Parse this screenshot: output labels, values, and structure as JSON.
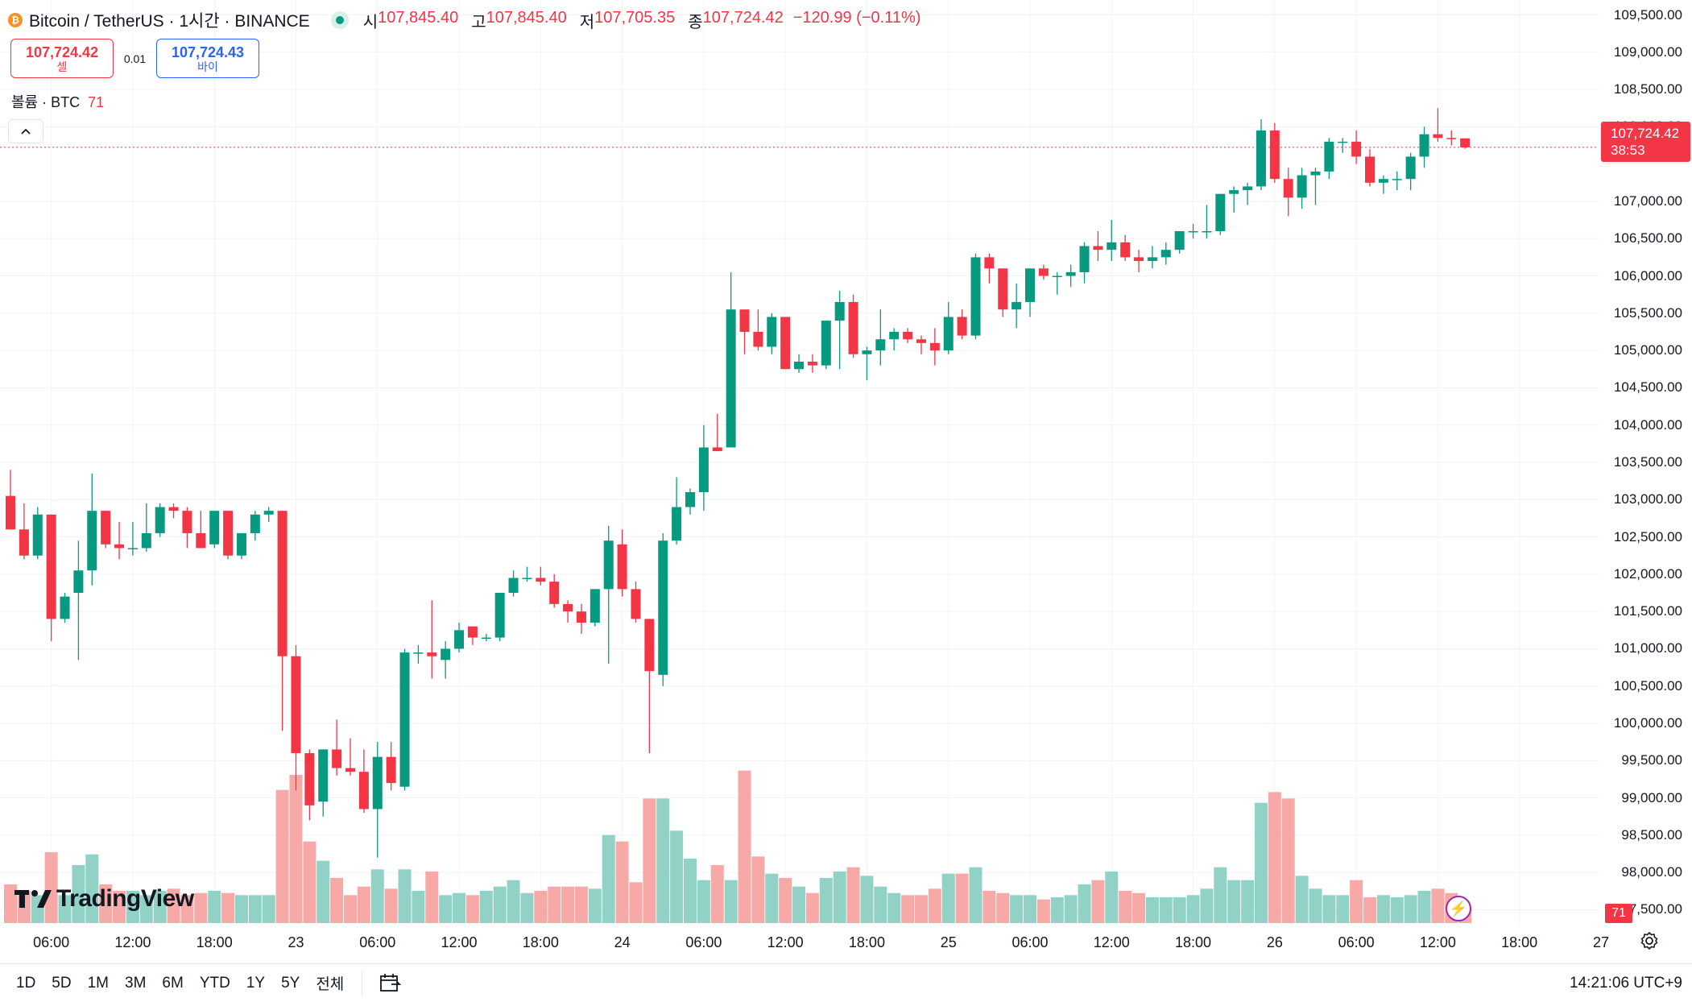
{
  "header": {
    "symbol": "Bitcoin / TetherUS · 1시간 · BINANCE",
    "ohlc": {
      "open_label": "시",
      "open": "107,845.40",
      "high_label": "고",
      "high": "107,845.40",
      "low_label": "저",
      "low": "107,705.35",
      "close_label": "종",
      "close": "107,724.42",
      "change": "−120.99 (−0.11%)"
    }
  },
  "trade": {
    "sell_price": "107,724.42",
    "sell_label": "셀",
    "spread": "0.01",
    "buy_price": "107,724.43",
    "buy_label": "바이"
  },
  "volume_legend": {
    "label": "볼륨 · BTC",
    "value": "71"
  },
  "price_axis": {
    "ticks": [
      "109,500.00",
      "109,000.00",
      "108,500.00",
      "108,000.00",
      "107,000.00",
      "106,500.00",
      "106,000.00",
      "105,500.00",
      "105,000.00",
      "104,500.00",
      "104,000.00",
      "103,500.00",
      "103,000.00",
      "102,500.00",
      "102,000.00",
      "101,500.00",
      "101,000.00",
      "100,500.00",
      "100,000.00",
      "99,500.00",
      "99,000.00",
      "98,500.00",
      "98,000.00",
      "97,500.00"
    ],
    "last_price": "107,724.42",
    "countdown": "38:53",
    "volume_badge": "71"
  },
  "time_axis": {
    "ticks": [
      "06:00",
      "12:00",
      "18:00",
      "23",
      "06:00",
      "12:00",
      "18:00",
      "24",
      "06:00",
      "12:00",
      "18:00",
      "25",
      "06:00",
      "12:00",
      "18:00",
      "26",
      "06:00",
      "12:00",
      "18:00",
      "27"
    ]
  },
  "bottom_bar": {
    "ranges": [
      "1D",
      "5D",
      "1M",
      "3M",
      "6M",
      "YTD",
      "1Y",
      "5Y",
      "전체"
    ],
    "clock": "14:21:06 UTC+9"
  },
  "branding": {
    "logo_text": "TradingView"
  },
  "colors": {
    "up": "#089981",
    "down": "#f23645",
    "up_volume": "#92d2c6",
    "down_volume": "#f7a9a8",
    "grid": "#f0f3fa"
  },
  "chart_data": {
    "type": "candlestick",
    "interval": "1h",
    "ylim": [
      97300,
      109700
    ],
    "price_ticks": [
      109500,
      109000,
      108500,
      108000,
      107000,
      106500,
      106000,
      105500,
      105000,
      104500,
      104000,
      103500,
      103000,
      102500,
      102000,
      101500,
      101000,
      100500,
      100000,
      99500,
      99000,
      98500,
      98000,
      97500
    ],
    "last_price": 107724.42,
    "volume_axis_max": 750,
    "time_ticks": [
      {
        "label": "06:00",
        "index": 3
      },
      {
        "label": "12:00",
        "index": 9
      },
      {
        "label": "18:00",
        "index": 15
      },
      {
        "label": "23",
        "index": 21
      },
      {
        "label": "06:00",
        "index": 27
      },
      {
        "label": "12:00",
        "index": 33
      },
      {
        "label": "18:00",
        "index": 39
      },
      {
        "label": "24",
        "index": 45
      },
      {
        "label": "06:00",
        "index": 51
      },
      {
        "label": "12:00",
        "index": 57
      },
      {
        "label": "18:00",
        "index": 63
      },
      {
        "label": "25",
        "index": 69
      },
      {
        "label": "06:00",
        "index": 75
      },
      {
        "label": "12:00",
        "index": 81
      },
      {
        "label": "18:00",
        "index": 87
      },
      {
        "label": "26",
        "index": 93
      },
      {
        "label": "06:00",
        "index": 99
      },
      {
        "label": "12:00",
        "index": 105
      },
      {
        "label": "18:00",
        "index": 111
      },
      {
        "label": "27",
        "index": 117
      }
    ],
    "candles": [
      {
        "o": 103050,
        "h": 103400,
        "l": 102600,
        "c": 102600,
        "v": 180
      },
      {
        "o": 102600,
        "h": 102950,
        "l": 102200,
        "c": 102250,
        "v": 150
      },
      {
        "o": 102250,
        "h": 102900,
        "l": 102200,
        "c": 102800,
        "v": 130
      },
      {
        "o": 102800,
        "h": 102800,
        "l": 101100,
        "c": 101400,
        "v": 330
      },
      {
        "o": 101400,
        "h": 101750,
        "l": 101350,
        "c": 101700,
        "v": 130
      },
      {
        "o": 101750,
        "h": 102450,
        "l": 100850,
        "c": 102050,
        "v": 270
      },
      {
        "o": 102050,
        "h": 103350,
        "l": 101850,
        "c": 102850,
        "v": 320
      },
      {
        "o": 102850,
        "h": 102850,
        "l": 102350,
        "c": 102400,
        "v": 180
      },
      {
        "o": 102400,
        "h": 102700,
        "l": 102200,
        "c": 102350,
        "v": 150
      },
      {
        "o": 102350,
        "h": 102700,
        "l": 102250,
        "c": 102350,
        "v": 150
      },
      {
        "o": 102350,
        "h": 102950,
        "l": 102300,
        "c": 102550,
        "v": 130
      },
      {
        "o": 102550,
        "h": 102950,
        "l": 102500,
        "c": 102900,
        "v": 150
      },
      {
        "o": 102900,
        "h": 102950,
        "l": 102750,
        "c": 102850,
        "v": 160
      },
      {
        "o": 102850,
        "h": 102900,
        "l": 102350,
        "c": 102550,
        "v": 130
      },
      {
        "o": 102550,
        "h": 102850,
        "l": 102350,
        "c": 102350,
        "v": 140
      },
      {
        "o": 102400,
        "h": 102850,
        "l": 102350,
        "c": 102850,
        "v": 150
      },
      {
        "o": 102850,
        "h": 102850,
        "l": 102200,
        "c": 102250,
        "v": 140
      },
      {
        "o": 102250,
        "h": 102550,
        "l": 102200,
        "c": 102550,
        "v": 130
      },
      {
        "o": 102550,
        "h": 102850,
        "l": 102450,
        "c": 102800,
        "v": 130
      },
      {
        "o": 102800,
        "h": 102900,
        "l": 102700,
        "c": 102850,
        "v": 130
      },
      {
        "o": 102850,
        "h": 102850,
        "l": 99900,
        "c": 100900,
        "v": 620
      },
      {
        "o": 100900,
        "h": 101050,
        "l": 99100,
        "c": 99600,
        "v": 690
      },
      {
        "o": 99600,
        "h": 99650,
        "l": 98700,
        "c": 98900,
        "v": 380
      },
      {
        "o": 98950,
        "h": 99650,
        "l": 98750,
        "c": 99650,
        "v": 290
      },
      {
        "o": 99650,
        "h": 100050,
        "l": 99300,
        "c": 99400,
        "v": 210
      },
      {
        "o": 99400,
        "h": 99800,
        "l": 99300,
        "c": 99350,
        "v": 130
      },
      {
        "o": 99350,
        "h": 99650,
        "l": 98800,
        "c": 98850,
        "v": 170
      },
      {
        "o": 98850,
        "h": 99750,
        "l": 98200,
        "c": 99550,
        "v": 250
      },
      {
        "o": 99550,
        "h": 99750,
        "l": 99100,
        "c": 99200,
        "v": 160
      },
      {
        "o": 99150,
        "h": 101000,
        "l": 99100,
        "c": 100950,
        "v": 250
      },
      {
        "o": 100950,
        "h": 101050,
        "l": 100800,
        "c": 100950,
        "v": 150
      },
      {
        "o": 100950,
        "h": 101650,
        "l": 100600,
        "c": 100900,
        "v": 240
      },
      {
        "o": 100850,
        "h": 101100,
        "l": 100600,
        "c": 101000,
        "v": 130
      },
      {
        "o": 101000,
        "h": 101350,
        "l": 100950,
        "c": 101250,
        "v": 140
      },
      {
        "o": 101300,
        "h": 101300,
        "l": 101050,
        "c": 101150,
        "v": 130
      },
      {
        "o": 101150,
        "h": 101200,
        "l": 101100,
        "c": 101150,
        "v": 150
      },
      {
        "o": 101150,
        "h": 101750,
        "l": 101100,
        "c": 101750,
        "v": 170
      },
      {
        "o": 101750,
        "h": 102050,
        "l": 101700,
        "c": 101950,
        "v": 200
      },
      {
        "o": 101950,
        "h": 102100,
        "l": 101900,
        "c": 101950,
        "v": 140
      },
      {
        "o": 101950,
        "h": 102100,
        "l": 101850,
        "c": 101900,
        "v": 150
      },
      {
        "o": 101900,
        "h": 102000,
        "l": 101550,
        "c": 101600,
        "v": 170
      },
      {
        "o": 101600,
        "h": 101650,
        "l": 101350,
        "c": 101500,
        "v": 170
      },
      {
        "o": 101500,
        "h": 101600,
        "l": 101200,
        "c": 101350,
        "v": 170
      },
      {
        "o": 101350,
        "h": 101800,
        "l": 101300,
        "c": 101800,
        "v": 160
      },
      {
        "o": 101800,
        "h": 102650,
        "l": 100800,
        "c": 102450,
        "v": 410
      },
      {
        "o": 102400,
        "h": 102600,
        "l": 101700,
        "c": 101800,
        "v": 380
      },
      {
        "o": 101800,
        "h": 101900,
        "l": 101350,
        "c": 101400,
        "v": 190
      },
      {
        "o": 101400,
        "h": 101400,
        "l": 99600,
        "c": 100700,
        "v": 580
      },
      {
        "o": 100650,
        "h": 102550,
        "l": 100500,
        "c": 102450,
        "v": 580
      },
      {
        "o": 102450,
        "h": 103300,
        "l": 102400,
        "c": 102900,
        "v": 430
      },
      {
        "o": 102900,
        "h": 103150,
        "l": 102800,
        "c": 103100,
        "v": 300
      },
      {
        "o": 103100,
        "h": 104000,
        "l": 102850,
        "c": 103700,
        "v": 200
      },
      {
        "o": 103700,
        "h": 104150,
        "l": 103650,
        "c": 103650,
        "v": 270
      },
      {
        "o": 103700,
        "h": 106050,
        "l": 103700,
        "c": 105550,
        "v": 200
      },
      {
        "o": 105550,
        "h": 105550,
        "l": 104950,
        "c": 105250,
        "v": 710
      },
      {
        "o": 105250,
        "h": 105550,
        "l": 105000,
        "c": 105050,
        "v": 310
      },
      {
        "o": 105050,
        "h": 105500,
        "l": 104950,
        "c": 105450,
        "v": 230
      },
      {
        "o": 105450,
        "h": 105450,
        "l": 104750,
        "c": 104750,
        "v": 210
      },
      {
        "o": 104750,
        "h": 104950,
        "l": 104700,
        "c": 104850,
        "v": 170
      },
      {
        "o": 104850,
        "h": 104950,
        "l": 104700,
        "c": 104800,
        "v": 140
      },
      {
        "o": 104800,
        "h": 105400,
        "l": 104750,
        "c": 105400,
        "v": 210
      },
      {
        "o": 105400,
        "h": 105800,
        "l": 104750,
        "c": 105650,
        "v": 240
      },
      {
        "o": 105650,
        "h": 105750,
        "l": 104900,
        "c": 104950,
        "v": 260
      },
      {
        "o": 104950,
        "h": 105050,
        "l": 104600,
        "c": 105000,
        "v": 220
      },
      {
        "o": 105000,
        "h": 105550,
        "l": 104800,
        "c": 105150,
        "v": 170
      },
      {
        "o": 105150,
        "h": 105300,
        "l": 105000,
        "c": 105250,
        "v": 140
      },
      {
        "o": 105250,
        "h": 105300,
        "l": 105100,
        "c": 105150,
        "v": 130
      },
      {
        "o": 105150,
        "h": 105200,
        "l": 104950,
        "c": 105100,
        "v": 130
      },
      {
        "o": 105100,
        "h": 105300,
        "l": 104800,
        "c": 105000,
        "v": 160
      },
      {
        "o": 105000,
        "h": 105650,
        "l": 104950,
        "c": 105450,
        "v": 230
      },
      {
        "o": 105450,
        "h": 105550,
        "l": 105150,
        "c": 105200,
        "v": 230
      },
      {
        "o": 105200,
        "h": 106300,
        "l": 105150,
        "c": 106250,
        "v": 260
      },
      {
        "o": 106250,
        "h": 106300,
        "l": 105900,
        "c": 106100,
        "v": 150
      },
      {
        "o": 106100,
        "h": 106100,
        "l": 105450,
        "c": 105550,
        "v": 140
      },
      {
        "o": 105550,
        "h": 105900,
        "l": 105300,
        "c": 105650,
        "v": 130
      },
      {
        "o": 105650,
        "h": 106100,
        "l": 105450,
        "c": 106100,
        "v": 130
      },
      {
        "o": 106100,
        "h": 106150,
        "l": 105950,
        "c": 106000,
        "v": 110
      },
      {
        "o": 106000,
        "h": 106050,
        "l": 105750,
        "c": 106000,
        "v": 120
      },
      {
        "o": 106000,
        "h": 106150,
        "l": 105850,
        "c": 106050,
        "v": 130
      },
      {
        "o": 106050,
        "h": 106450,
        "l": 105900,
        "c": 106400,
        "v": 180
      },
      {
        "o": 106400,
        "h": 106600,
        "l": 106200,
        "c": 106350,
        "v": 200
      },
      {
        "o": 106350,
        "h": 106750,
        "l": 106200,
        "c": 106450,
        "v": 240
      },
      {
        "o": 106450,
        "h": 106550,
        "l": 106200,
        "c": 106250,
        "v": 150
      },
      {
        "o": 106250,
        "h": 106350,
        "l": 106050,
        "c": 106200,
        "v": 140
      },
      {
        "o": 106200,
        "h": 106400,
        "l": 106100,
        "c": 106250,
        "v": 120
      },
      {
        "o": 106250,
        "h": 106450,
        "l": 106150,
        "c": 106350,
        "v": 120
      },
      {
        "o": 106350,
        "h": 106600,
        "l": 106300,
        "c": 106600,
        "v": 120
      },
      {
        "o": 106600,
        "h": 106700,
        "l": 106500,
        "c": 106600,
        "v": 130
      },
      {
        "o": 106600,
        "h": 106950,
        "l": 106500,
        "c": 106600,
        "v": 160
      },
      {
        "o": 106600,
        "h": 107100,
        "l": 106550,
        "c": 107100,
        "v": 260
      },
      {
        "o": 107100,
        "h": 107200,
        "l": 106850,
        "c": 107150,
        "v": 200
      },
      {
        "o": 107150,
        "h": 107250,
        "l": 106950,
        "c": 107200,
        "v": 200
      },
      {
        "o": 107200,
        "h": 108100,
        "l": 107150,
        "c": 107950,
        "v": 560
      },
      {
        "o": 107950,
        "h": 108050,
        "l": 107250,
        "c": 107300,
        "v": 610
      },
      {
        "o": 107300,
        "h": 107450,
        "l": 106800,
        "c": 107050,
        "v": 580
      },
      {
        "o": 107050,
        "h": 107450,
        "l": 106900,
        "c": 107350,
        "v": 220
      },
      {
        "o": 107350,
        "h": 107450,
        "l": 106950,
        "c": 107400,
        "v": 160
      },
      {
        "o": 107400,
        "h": 107850,
        "l": 107300,
        "c": 107800,
        "v": 130
      },
      {
        "o": 107800,
        "h": 107850,
        "l": 107650,
        "c": 107800,
        "v": 130
      },
      {
        "o": 107800,
        "h": 107950,
        "l": 107500,
        "c": 107600,
        "v": 200
      },
      {
        "o": 107600,
        "h": 107700,
        "l": 107200,
        "c": 107250,
        "v": 120
      },
      {
        "o": 107250,
        "h": 107350,
        "l": 107100,
        "c": 107300,
        "v": 130
      },
      {
        "o": 107300,
        "h": 107400,
        "l": 107150,
        "c": 107300,
        "v": 120
      },
      {
        "o": 107300,
        "h": 107650,
        "l": 107150,
        "c": 107600,
        "v": 130
      },
      {
        "o": 107600,
        "h": 108000,
        "l": 107450,
        "c": 107900,
        "v": 150
      },
      {
        "o": 107900,
        "h": 108250,
        "l": 107800,
        "c": 107850,
        "v": 160
      },
      {
        "o": 107850,
        "h": 107950,
        "l": 107750,
        "c": 107845,
        "v": 140
      },
      {
        "o": 107845,
        "h": 107845,
        "l": 107705,
        "c": 107724,
        "v": 71
      }
    ]
  }
}
